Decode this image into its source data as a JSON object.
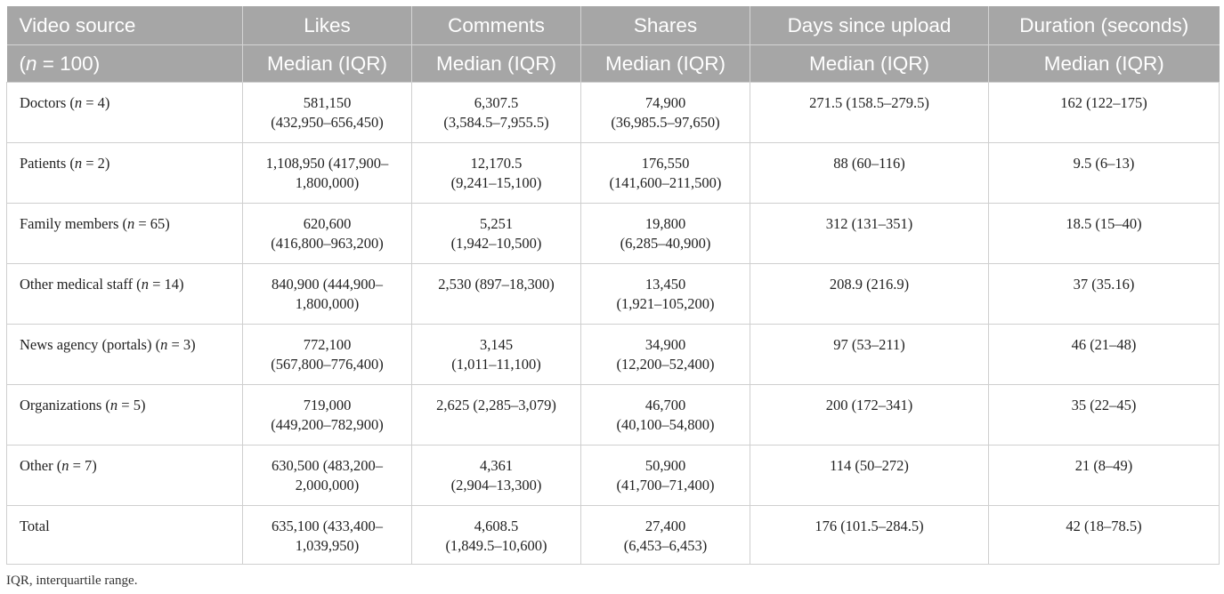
{
  "table": {
    "header_row1": [
      "Video source",
      "Likes",
      "Comments",
      "Shares",
      "Days since upload",
      "Duration (seconds)"
    ],
    "header_row2": {
      "source_n_prefix": "(",
      "source_n_var": "n",
      "source_n_suffix": " = 100)",
      "stat": [
        "Median (IQR)",
        "Median (IQR)",
        "Median (IQR)",
        "Median (IQR)",
        "Median (IQR)"
      ]
    },
    "rows": [
      {
        "source": {
          "name": "Doctors (",
          "n": "n",
          "count": " = 4)"
        },
        "likes": [
          "581,150",
          "(432,950–656,450)"
        ],
        "comments": [
          "6,307.5",
          "(3,584.5–7,955.5)"
        ],
        "shares": [
          "74,900",
          "(36,985.5–97,650)"
        ],
        "days": [
          "271.5 (158.5–279.5)",
          ""
        ],
        "duration": [
          "162 (122–175)",
          ""
        ]
      },
      {
        "source": {
          "name": "Patients (",
          "n": "n",
          "count": " = 2)"
        },
        "likes": [
          "1,108,950 (417,900–",
          "1,800,000)"
        ],
        "comments": [
          "12,170.5",
          "(9,241–15,100)"
        ],
        "shares": [
          "176,550",
          "(141,600–211,500)"
        ],
        "days": [
          "88 (60–116)",
          ""
        ],
        "duration": [
          "9.5 (6–13)",
          ""
        ]
      },
      {
        "source": {
          "name": "Family members (",
          "n": "n",
          "count": " = 65)"
        },
        "likes": [
          "620,600",
          "(416,800–963,200)"
        ],
        "comments": [
          "5,251",
          "(1,942–10,500)"
        ],
        "shares": [
          "19,800",
          "(6,285–40,900)"
        ],
        "days": [
          "312 (131–351)",
          ""
        ],
        "duration": [
          "18.5 (15–40)",
          ""
        ]
      },
      {
        "source": {
          "name": "Other medical staff (",
          "n": "n",
          "count": " = 14)"
        },
        "likes": [
          "840,900 (444,900–",
          "1,800,000)"
        ],
        "comments": [
          "2,530 (897–18,300)",
          ""
        ],
        "shares": [
          "13,450",
          "(1,921–105,200)"
        ],
        "days": [
          "208.9 (216.9)",
          ""
        ],
        "duration": [
          "37 (35.16)",
          ""
        ]
      },
      {
        "source": {
          "name": "News agency (portals) (",
          "n": "n",
          "count": " = 3)"
        },
        "likes": [
          "772,100",
          "(567,800–776,400)"
        ],
        "comments": [
          "3,145",
          "(1,011–11,100)"
        ],
        "shares": [
          "34,900",
          "(12,200–52,400)"
        ],
        "days": [
          "97 (53–211)",
          ""
        ],
        "duration": [
          "46 (21–48)",
          ""
        ]
      },
      {
        "source": {
          "name": "Organizations (",
          "n": "n",
          "count": " = 5)"
        },
        "likes": [
          "719,000",
          "(449,200–782,900)"
        ],
        "comments": [
          "2,625 (2,285–3,079)",
          ""
        ],
        "shares": [
          "46,700",
          "(40,100–54,800)"
        ],
        "days": [
          "200 (172–341)",
          ""
        ],
        "duration": [
          "35 (22–45)",
          ""
        ]
      },
      {
        "source": {
          "name": "Other (",
          "n": "n",
          "count": " = 7)"
        },
        "likes": [
          "630,500 (483,200–",
          "2,000,000)"
        ],
        "comments": [
          "4,361",
          "(2,904–13,300)"
        ],
        "shares": [
          "50,900",
          "(41,700–71,400)"
        ],
        "days": [
          "114 (50–272)",
          ""
        ],
        "duration": [
          "21 (8–49)",
          ""
        ]
      },
      {
        "source": {
          "name": "Total",
          "n": "",
          "count": ""
        },
        "likes": [
          "635,100 (433,400–",
          "1,039,950)"
        ],
        "comments": [
          "4,608.5",
          "(1,849.5–10,600)"
        ],
        "shares": [
          "27,400",
          "(6,453–6,453)"
        ],
        "days": [
          "176 (101.5–284.5)",
          ""
        ],
        "duration": [
          "42 (18–78.5)",
          ""
        ]
      }
    ]
  },
  "footnote": "IQR, interquartile range.",
  "colors": {
    "header_bg": "#a6a6a6",
    "header_text": "#ffffff",
    "grid": "#cfcfcf",
    "body_text": "#222222"
  }
}
